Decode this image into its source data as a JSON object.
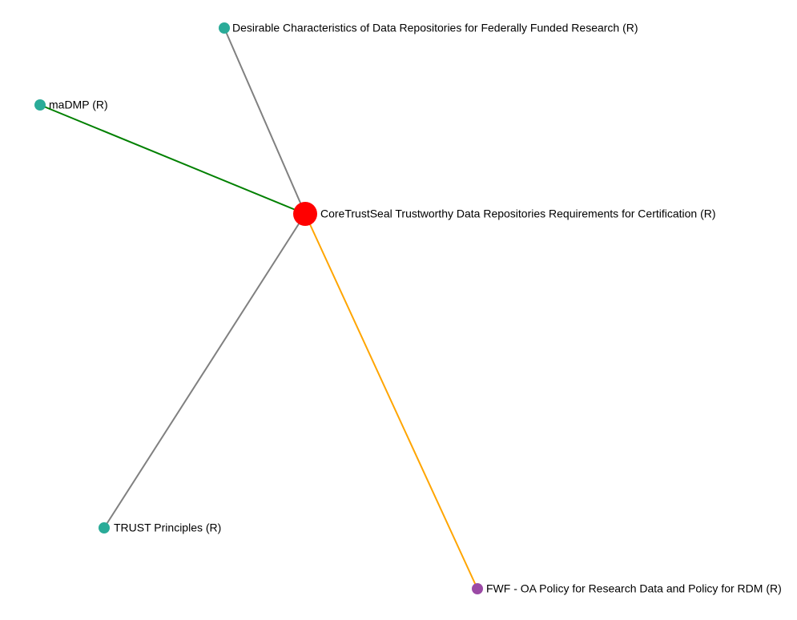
{
  "graph": {
    "center": {
      "id": "coretrustseal",
      "label": "CoreTrustSeal Trustworthy Data Repositories Requirements for Certification (R)",
      "color": "#ff0000"
    },
    "nodes": [
      {
        "id": "desirable",
        "label": "Desirable Characteristics of Data Repositories for Federally Funded Research (R)",
        "color": "#2aab98",
        "edge_color": "#808080"
      },
      {
        "id": "madmp",
        "label": "maDMP (R)",
        "color": "#2aab98",
        "edge_color": "#008000"
      },
      {
        "id": "trust",
        "label": "TRUST Principles (R)",
        "color": "#2aab98",
        "edge_color": "#808080"
      },
      {
        "id": "fwf",
        "label": "FWF - OA Policy for Research Data and Policy for RDM (R)",
        "color": "#9b4aa5",
        "edge_color": "#ffa500"
      }
    ]
  }
}
